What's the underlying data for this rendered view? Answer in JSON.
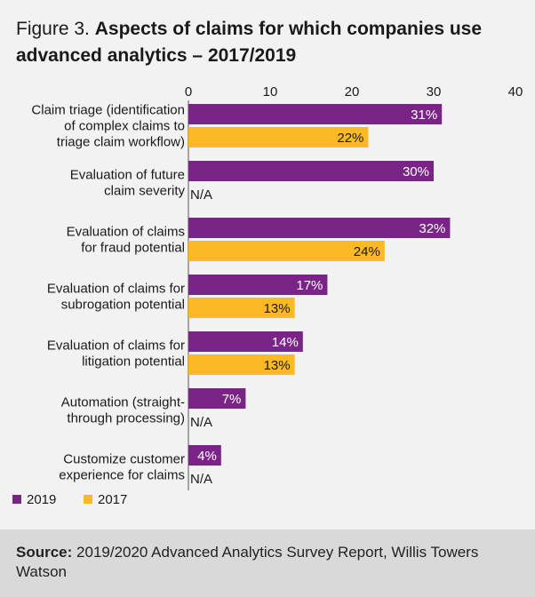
{
  "title": {
    "prefix": "Figure 3.",
    "main": "Aspects of claims for which companies use advanced analytics – 2017/2019"
  },
  "source": {
    "label": "Source:",
    "text": "2019/2020 Advanced Analytics Survey Report, Willis Towers Watson"
  },
  "colors": {
    "series_2019": "#7b2487",
    "series_2017": "#fbb924"
  },
  "chart_data": {
    "type": "bar",
    "orientation": "horizontal",
    "xlim": [
      0,
      40
    ],
    "xticks": [
      "0",
      "10",
      "20",
      "30",
      "40"
    ],
    "categories": [
      [
        "Claim triage (identification",
        "of complex claims to",
        "triage claim workflow)"
      ],
      [
        "Evaluation of future",
        "claim severity"
      ],
      [
        "Evaluation of claims",
        "for fraud potential"
      ],
      [
        "Evaluation of claims for",
        "subrogation potential"
      ],
      [
        "Evaluation of claims for",
        "litigation potential"
      ],
      [
        "Automation (straight-",
        "through processing)"
      ],
      [
        "Customize customer",
        "experience for claims"
      ]
    ],
    "series": [
      {
        "name": "2019",
        "values": [
          31,
          30,
          32,
          17,
          14,
          7,
          4
        ],
        "labels": [
          "31%",
          "30%",
          "32%",
          "17%",
          "14%",
          "7%",
          "4%"
        ]
      },
      {
        "name": "2017",
        "values": [
          22,
          null,
          24,
          13,
          13,
          null,
          null
        ],
        "labels": [
          "22%",
          "N/A",
          "24%",
          "13%",
          "13%",
          "N/A",
          "N/A"
        ]
      }
    ],
    "legend": "bottom-left"
  }
}
